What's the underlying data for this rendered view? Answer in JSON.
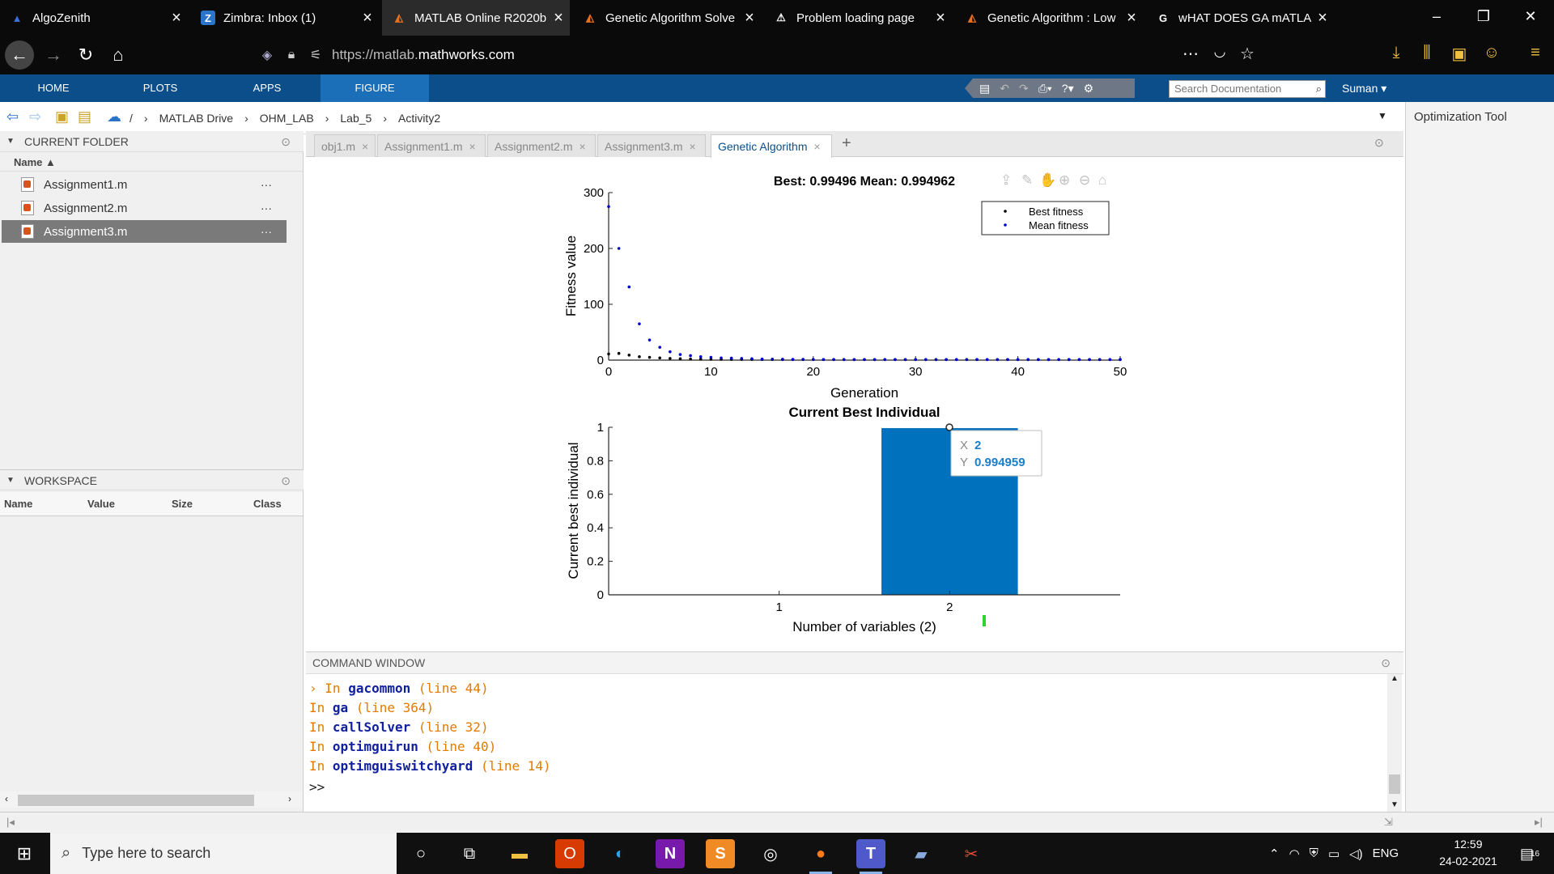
{
  "browser": {
    "tabs": [
      {
        "title": "AlgoZenith",
        "icon": "algozenith-icon",
        "glyph": "▲",
        "color": "#3a6fd8"
      },
      {
        "title": "Zimbra: Inbox (1)",
        "icon": "zimbra-icon",
        "glyph": "Z",
        "color": "#2a75c9"
      },
      {
        "title": "MATLAB Online R2020b",
        "icon": "matlab-icon",
        "glyph": "◭",
        "color": "#e8711f"
      },
      {
        "title": "Genetic Algorithm Solve",
        "icon": "matlab-icon",
        "glyph": "◭",
        "color": "#e8711f"
      },
      {
        "title": "Problem loading page",
        "icon": "warning-icon",
        "glyph": "⚠",
        "color": "#ffffff"
      },
      {
        "title": "Genetic Algorithm : Low",
        "icon": "matlab-icon",
        "glyph": "◭",
        "color": "#e8711f"
      },
      {
        "title": "wHAT DOES GA mATLAB",
        "icon": "google-icon",
        "glyph": "G",
        "color": "#ffffff"
      }
    ],
    "url_prefix": "https://matlab.",
    "url_host": "mathworks.com"
  },
  "toolstrip": {
    "tabs": [
      "HOME",
      "PLOTS",
      "APPS",
      "FIGURE"
    ],
    "active": "FIGURE",
    "search_placeholder": "Search Documentation",
    "user": "Suman"
  },
  "pathbar": {
    "crumbs": [
      "/",
      "MATLAB Drive",
      "OHM_LAB",
      "Lab_5",
      "Activity2"
    ]
  },
  "right_panel": {
    "title": "Optimization Tool"
  },
  "current_folder": {
    "header": "CURRENT FOLDER",
    "column": "Name",
    "files": [
      "Assignment1.m",
      "Assignment2.m",
      "Assignment3.m"
    ],
    "selected": "Assignment3.m"
  },
  "workspace": {
    "header": "WORKSPACE",
    "columns": [
      "Name",
      "Value",
      "Size",
      "Class"
    ]
  },
  "editor": {
    "tabs": [
      "obj1.m",
      "Assignment1.m",
      "Assignment2.m",
      "Assignment3.m",
      "Genetic Algorithm"
    ],
    "active": "Genetic Algorithm",
    "add": "+"
  },
  "chart_data": [
    {
      "type": "scatter",
      "title": "Best: 0.99496 Mean: 0.994962",
      "xlabel": "Generation",
      "ylabel": "Fitness value",
      "xlim": [
        0,
        50
      ],
      "ylim": [
        0,
        300
      ],
      "xticks": [
        0,
        10,
        20,
        30,
        40,
        50
      ],
      "yticks": [
        0,
        100,
        200,
        300
      ],
      "legend_position": "top-right",
      "series": [
        {
          "name": "Best fitness",
          "color": "#000000",
          "x": [
            0,
            1,
            2,
            3,
            4,
            5,
            6,
            7,
            8,
            9,
            10,
            11,
            12,
            13,
            14,
            15,
            16,
            17,
            18,
            19,
            20,
            21,
            22,
            23,
            24,
            25,
            26,
            27,
            28,
            29,
            30,
            31,
            32,
            33,
            34,
            35,
            36,
            37,
            38,
            39,
            40,
            41,
            42,
            43,
            44,
            45,
            46,
            47,
            48,
            49,
            50
          ],
          "y": [
            11,
            12,
            9,
            6,
            5,
            4,
            3,
            2.5,
            2,
            1.8,
            1.6,
            1.5,
            1.4,
            1.3,
            1.2,
            1.1,
            1.1,
            1,
            1,
            1,
            1,
            1,
            1,
            1,
            1,
            1,
            1,
            1,
            1,
            1,
            1,
            1,
            1,
            1,
            1,
            1,
            1,
            1,
            1,
            1,
            1,
            1,
            1,
            1,
            1,
            1,
            1,
            1,
            1,
            1,
            1
          ]
        },
        {
          "name": "Mean fitness",
          "color": "#0000cc",
          "x": [
            0,
            1,
            2,
            3,
            4,
            5,
            6,
            7,
            8,
            9,
            10,
            11,
            12,
            13,
            14,
            15,
            16,
            17,
            18,
            19,
            20,
            21,
            22,
            23,
            24,
            25,
            26,
            27,
            28,
            29,
            30,
            31,
            32,
            33,
            34,
            35,
            36,
            37,
            38,
            39,
            40,
            41,
            42,
            43,
            44,
            45,
            46,
            47,
            48,
            49,
            50
          ],
          "y": [
            275,
            200,
            131,
            65,
            36,
            23,
            15,
            10,
            8,
            6,
            5,
            4,
            3.5,
            3,
            2.5,
            2,
            1.8,
            1.6,
            1.4,
            1.3,
            1.2,
            1.1,
            1,
            1,
            1,
            1,
            1,
            1,
            1,
            1,
            1,
            1,
            1,
            1,
            1,
            1,
            1,
            1,
            1,
            1,
            1,
            1,
            1,
            1,
            1,
            1,
            1,
            1,
            1,
            1,
            1
          ]
        }
      ]
    },
    {
      "type": "bar",
      "title": "Current Best Individual",
      "xlabel": "Number of variables (2)",
      "ylabel": "Current best individual",
      "categories": [
        "1",
        "2"
      ],
      "values": [
        0,
        0.994959
      ],
      "ylim": [
        0,
        1
      ],
      "yticks": [
        0,
        0.2,
        0.4,
        0.6,
        0.8,
        1
      ],
      "yticklabels": [
        "0",
        "0.2",
        "0.4",
        "0.6",
        "0.8",
        "1"
      ],
      "color": "#0072bd",
      "datatip": {
        "x_label": "X",
        "x_value": "2",
        "y_label": "Y",
        "y_value": "0.994959"
      }
    }
  ],
  "command_window": {
    "header": "COMMAND WINDOW",
    "lines": [
      {
        "prefix": "In",
        "fn": "gacommon",
        "loc": "(line 44)"
      },
      {
        "prefix": "In",
        "fn": "ga",
        "loc": "(line 364)"
      },
      {
        "prefix": "In",
        "fn": "callSolver",
        "loc": "(line 32)"
      },
      {
        "prefix": "In",
        "fn": "optimguirun",
        "loc": "(line 40)"
      },
      {
        "prefix": "In",
        "fn": "optimguiswitchyard",
        "loc": "(line 14)"
      }
    ],
    "prompt": ">>"
  },
  "taskbar": {
    "search_placeholder": "Type here to search",
    "lang": "ENG",
    "time": "12:59",
    "date": "24-02-2021",
    "notifications": "16"
  }
}
